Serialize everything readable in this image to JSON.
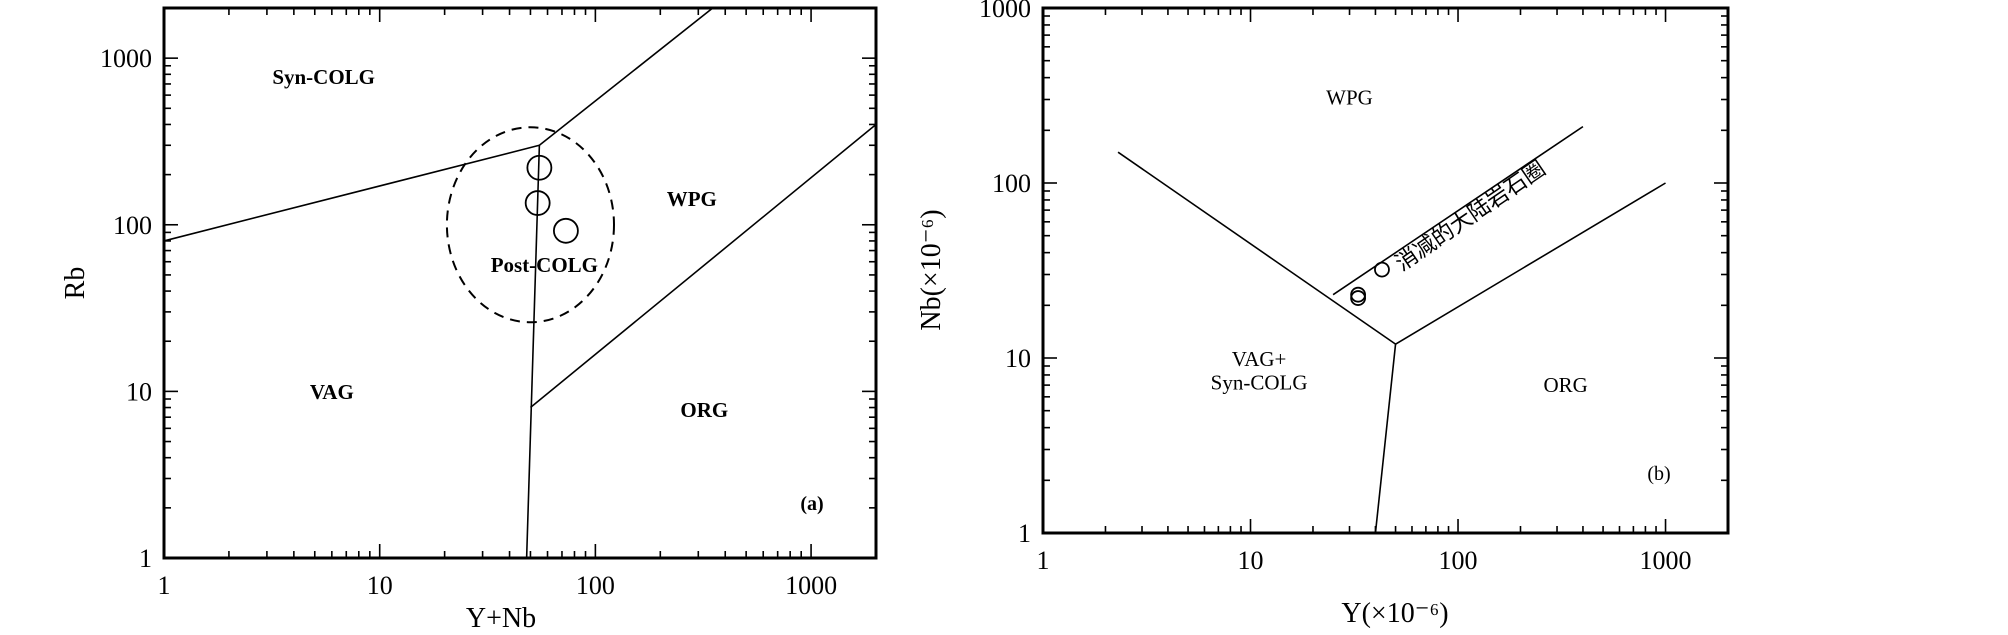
{
  "chart_data": [
    {
      "type": "scatter",
      "panel_label": "(a)",
      "xlabel": "Y+Nb",
      "ylabel": "Rb",
      "xscale": "log",
      "yscale": "log",
      "xlim": [
        1,
        2000
      ],
      "ylim": [
        1,
        2000
      ],
      "xticks": [
        1,
        10,
        100,
        1000
      ],
      "yticks": [
        1,
        10,
        100,
        1000
      ],
      "xtick_labels": [
        "1",
        "10",
        "100",
        "1000"
      ],
      "ytick_labels": [
        "1",
        "10",
        "100",
        "1000"
      ],
      "boundaries": [
        [
          [
            1,
            80
          ],
          [
            55,
            300
          ]
        ],
        [
          [
            55,
            300
          ],
          [
            350,
            2000
          ]
        ],
        [
          [
            48,
            1
          ],
          [
            55,
            300
          ]
        ],
        [
          [
            50,
            8
          ],
          [
            2000,
            400
          ]
        ]
      ],
      "dashed_circle": {
        "center": [
          50,
          100
        ],
        "x_extent": [
          21,
          125
        ],
        "y_extent": [
          25,
          370
        ]
      },
      "fields": [
        {
          "name": "Syn-COLG",
          "x": 5.5,
          "y": 700
        },
        {
          "name": "WPG",
          "x": 280,
          "y": 130
        },
        {
          "name": "Post-COLG",
          "x": 58,
          "y": 52
        },
        {
          "name": "VAG",
          "x": 6,
          "y": 9
        },
        {
          "name": "ORG",
          "x": 320,
          "y": 7
        }
      ],
      "points": [
        {
          "x": 55,
          "y": 220
        },
        {
          "x": 54,
          "y": 135
        },
        {
          "x": 73,
          "y": 92
        }
      ]
    },
    {
      "type": "scatter",
      "panel_label": "(b)",
      "xlabel": "Y(×10⁻⁶)",
      "ylabel": "Nb(×10⁻⁶)",
      "xscale": "log",
      "yscale": "log",
      "xlim": [
        1,
        2000
      ],
      "ylim": [
        1,
        1000
      ],
      "xticks": [
        1,
        10,
        100,
        1000
      ],
      "yticks": [
        1,
        10,
        100,
        1000
      ],
      "xtick_labels": [
        "1",
        "10",
        "100",
        "1000"
      ],
      "ytick_labels": [
        "1",
        "10",
        "100",
        "1000"
      ],
      "boundaries": [
        [
          [
            2.3,
            150
          ],
          [
            50,
            12
          ]
        ],
        [
          [
            50,
            12
          ],
          [
            40,
            1
          ]
        ],
        [
          [
            50,
            12
          ],
          [
            1000,
            100
          ]
        ],
        [
          [
            25,
            23
          ],
          [
            400,
            210
          ]
        ]
      ],
      "fields": [
        {
          "name": "WPG",
          "x": 30,
          "y": 280
        },
        {
          "name": "VAG+",
          "x": 11,
          "y": 9
        },
        {
          "name": "Syn-COLG",
          "x": 11,
          "y": 6.6
        },
        {
          "name": "ORG",
          "x": 330,
          "y": 6.4
        },
        {
          "name": "消减的大陆岩石圈",
          "x": 120,
          "y": 60
        }
      ],
      "points": [
        {
          "x": 33,
          "y": 23
        },
        {
          "x": 33,
          "y": 22
        },
        {
          "x": 43,
          "y": 32
        }
      ]
    }
  ]
}
